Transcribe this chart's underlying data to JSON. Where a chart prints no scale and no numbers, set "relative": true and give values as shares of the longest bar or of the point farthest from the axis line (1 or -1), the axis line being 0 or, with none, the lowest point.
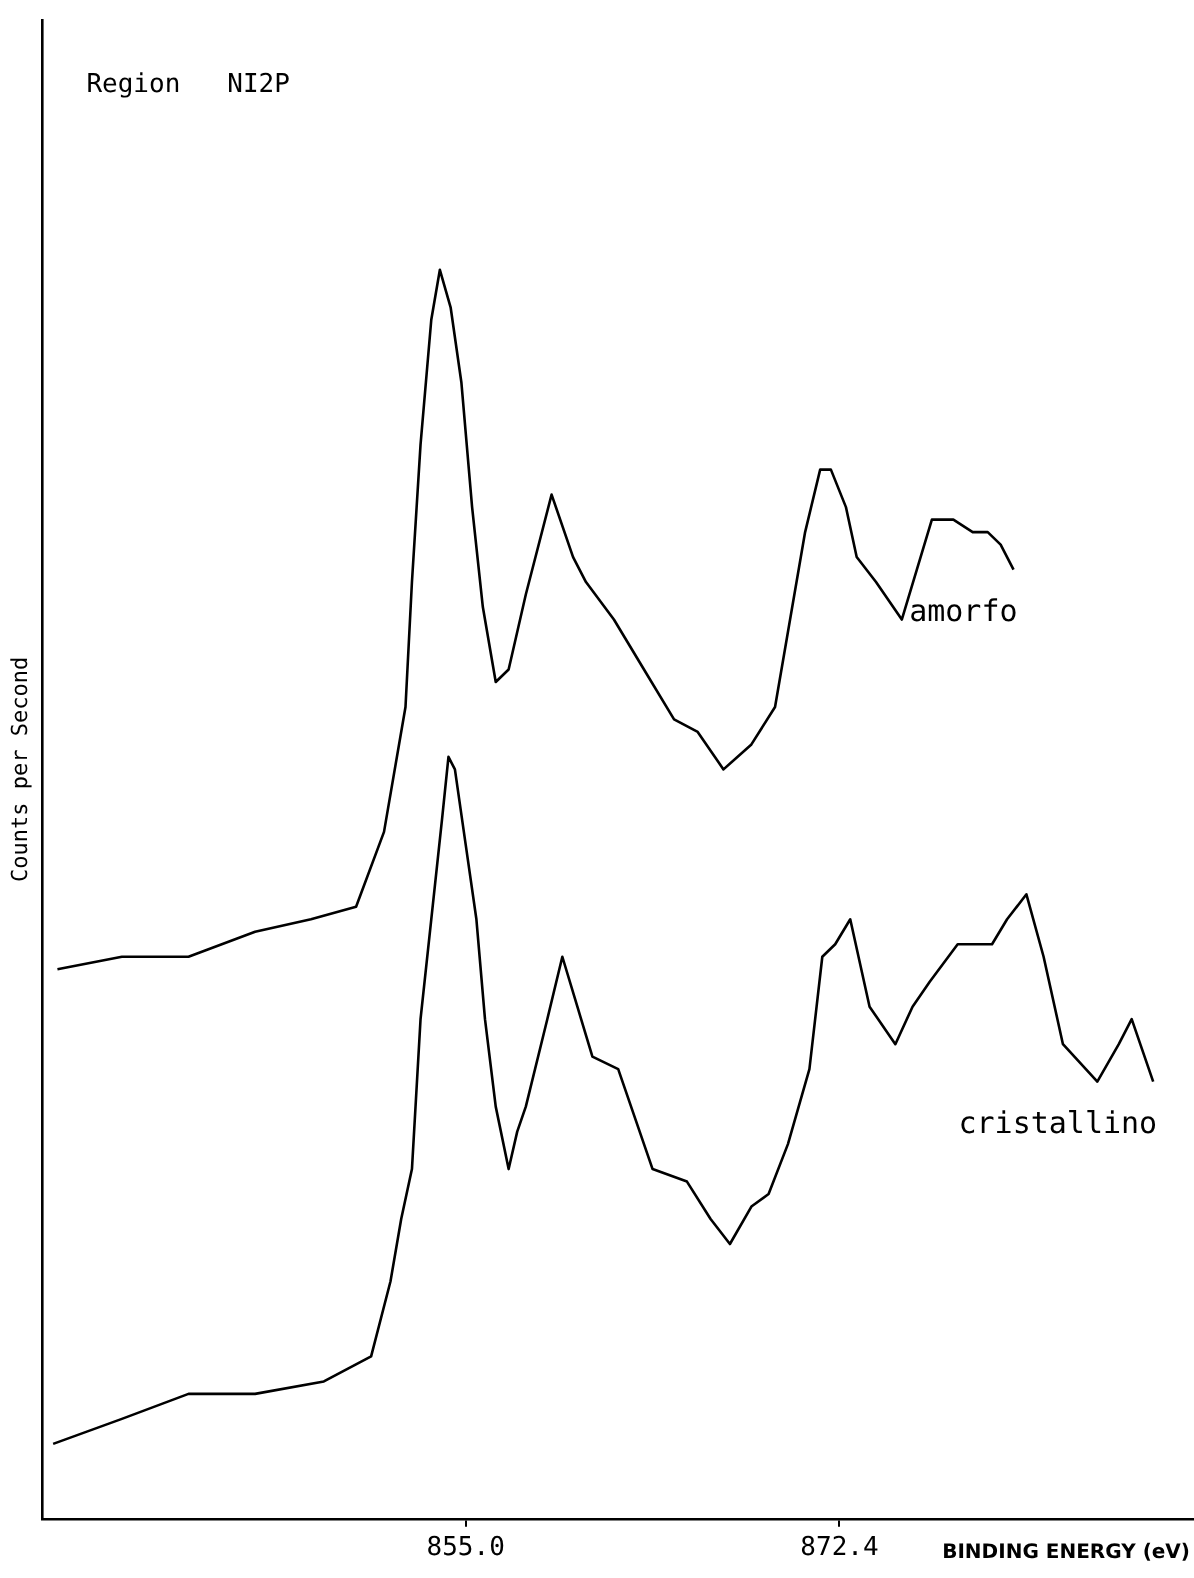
{
  "chart_data": {
    "type": "line",
    "title": "Region   NI2P",
    "xlabel": "BINDING ENERGY (eV)",
    "ylabel": "Counts per Second",
    "relative": true,
    "xlim": [
      835.3,
      888.9
    ],
    "xticks": [
      {
        "value": 855,
        "label": "855.0"
      },
      {
        "value": 872.4,
        "label": "872.4"
      }
    ],
    "grid": false,
    "legend": false,
    "marker": "none",
    "line_style": "solid",
    "series": [
      {
        "name": "amorfo",
        "color": "#000000",
        "x": [
          836.0,
          839.0,
          842.1,
          845.2,
          847.8,
          849.9,
          851.2,
          852.2,
          852.5,
          852.9,
          853.4,
          853.8,
          854.3,
          854.8,
          855.3,
          855.8,
          856.4,
          857.0,
          857.8,
          859.0,
          860.0,
          860.6,
          861.9,
          863.3,
          864.7,
          865.8,
          867.0,
          868.3,
          869.4,
          870.1,
          870.8,
          871.5,
          872.0,
          872.7,
          873.2,
          874.1,
          875.3,
          876.0,
          876.7,
          877.7,
          878.6,
          879.3,
          879.9,
          880.5
        ],
        "values": [
          0.44,
          0.45,
          0.45,
          0.47,
          0.48,
          0.49,
          0.55,
          0.65,
          0.75,
          0.86,
          0.96,
          1.0,
          0.97,
          0.91,
          0.81,
          0.73,
          0.67,
          0.68,
          0.74,
          0.82,
          0.77,
          0.75,
          0.72,
          0.68,
          0.64,
          0.63,
          0.6,
          0.62,
          0.65,
          0.72,
          0.79,
          0.84,
          0.84,
          0.81,
          0.77,
          0.75,
          0.72,
          0.76,
          0.8,
          0.8,
          0.79,
          0.79,
          0.78,
          0.76
        ]
      },
      {
        "name": "cristallino",
        "color": "#000000",
        "x": [
          835.8,
          837.4,
          839.0,
          842.1,
          845.2,
          848.4,
          850.6,
          851.5,
          852.0,
          852.5,
          852.9,
          853.4,
          853.9,
          854.2,
          854.5,
          855.0,
          855.5,
          855.9,
          856.4,
          857.0,
          857.4,
          857.8,
          858.8,
          859.5,
          860.2,
          860.9,
          862.1,
          863.7,
          865.3,
          866.4,
          867.3,
          868.3,
          869.1,
          870.0,
          871.0,
          871.6,
          872.2,
          872.9,
          873.8,
          875.0,
          875.8,
          876.6,
          877.9,
          879.5,
          880.2,
          881.1,
          881.9,
          882.8,
          884.4,
          885.4,
          886.0,
          887.0
        ],
        "values": [
          0.06,
          0.07,
          0.08,
          0.1,
          0.1,
          0.11,
          0.13,
          0.19,
          0.24,
          0.28,
          0.4,
          0.48,
          0.56,
          0.61,
          0.6,
          0.54,
          0.48,
          0.4,
          0.33,
          0.28,
          0.31,
          0.33,
          0.4,
          0.45,
          0.41,
          0.37,
          0.36,
          0.28,
          0.27,
          0.24,
          0.22,
          0.25,
          0.26,
          0.3,
          0.36,
          0.45,
          0.46,
          0.48,
          0.41,
          0.38,
          0.41,
          0.43,
          0.46,
          0.46,
          0.48,
          0.5,
          0.45,
          0.38,
          0.35,
          0.38,
          0.4,
          0.35
        ]
      }
    ]
  }
}
